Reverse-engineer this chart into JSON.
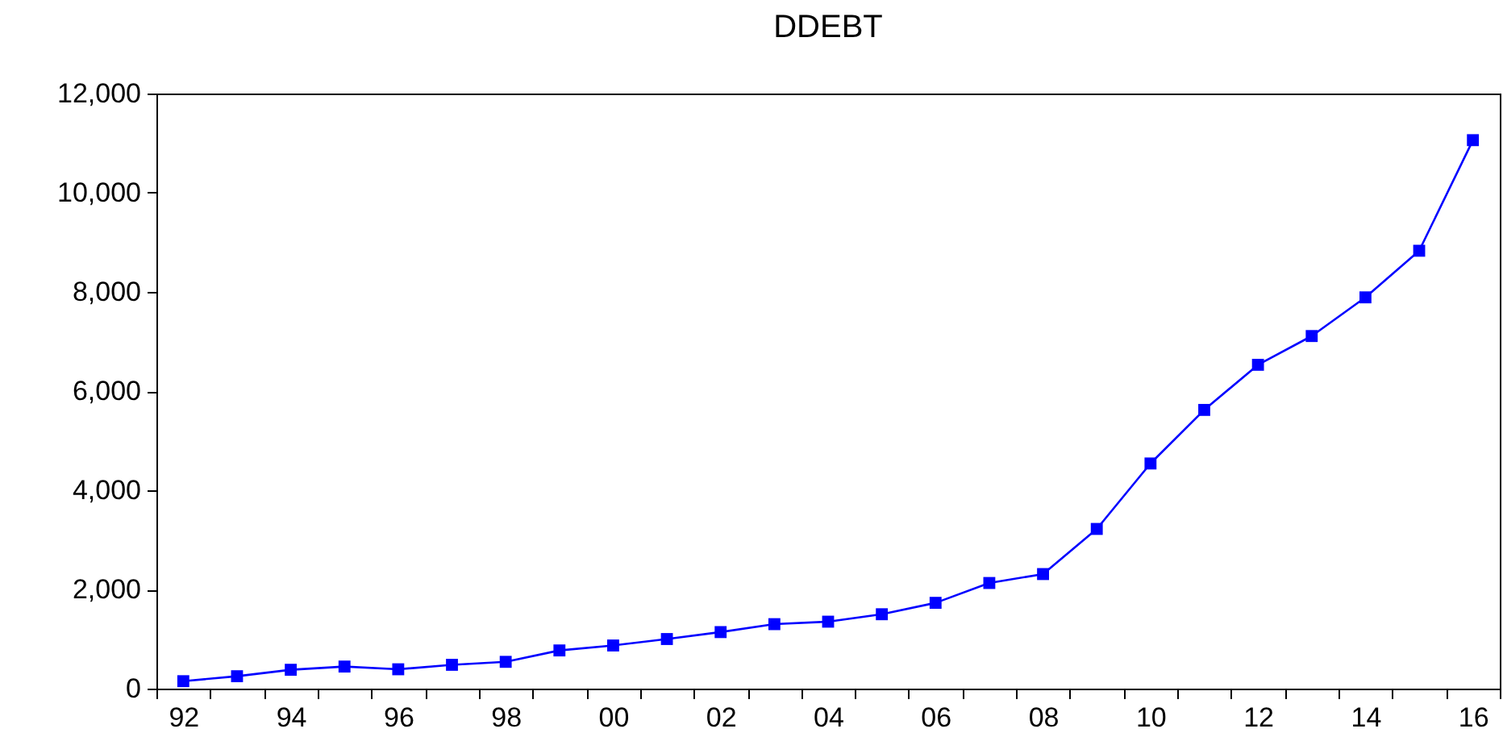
{
  "chart_data": {
    "type": "line",
    "title": "DDEBT",
    "categories": [
      "92",
      null,
      "94",
      null,
      "96",
      null,
      "98",
      null,
      "00",
      null,
      "02",
      null,
      "04",
      null,
      "06",
      null,
      "08",
      null,
      "10",
      null,
      "12",
      null,
      "14",
      null,
      "16"
    ],
    "series": [
      {
        "color": "#0000ff",
        "values": [
          150,
          250,
          380,
          445,
          390,
          480,
          540,
          770,
          870,
          1000,
          1140,
          1300,
          1350,
          1500,
          1730,
          2130,
          2310,
          3220,
          4540,
          5620,
          6530,
          7110,
          7890,
          8830,
          11060
        ]
      }
    ],
    "ylim": [
      0,
      12000
    ],
    "yticks": [
      {
        "value": 0,
        "label": "0"
      },
      {
        "value": 2000,
        "label": "2,000"
      },
      {
        "value": 4000,
        "label": "4,000"
      },
      {
        "value": 6000,
        "label": "6,000"
      },
      {
        "value": 8000,
        "label": "8,000"
      },
      {
        "value": 10000,
        "label": "10,000"
      },
      {
        "value": 12000,
        "label": "12,000"
      }
    ],
    "marker": "square",
    "grid": false,
    "legend": false
  }
}
